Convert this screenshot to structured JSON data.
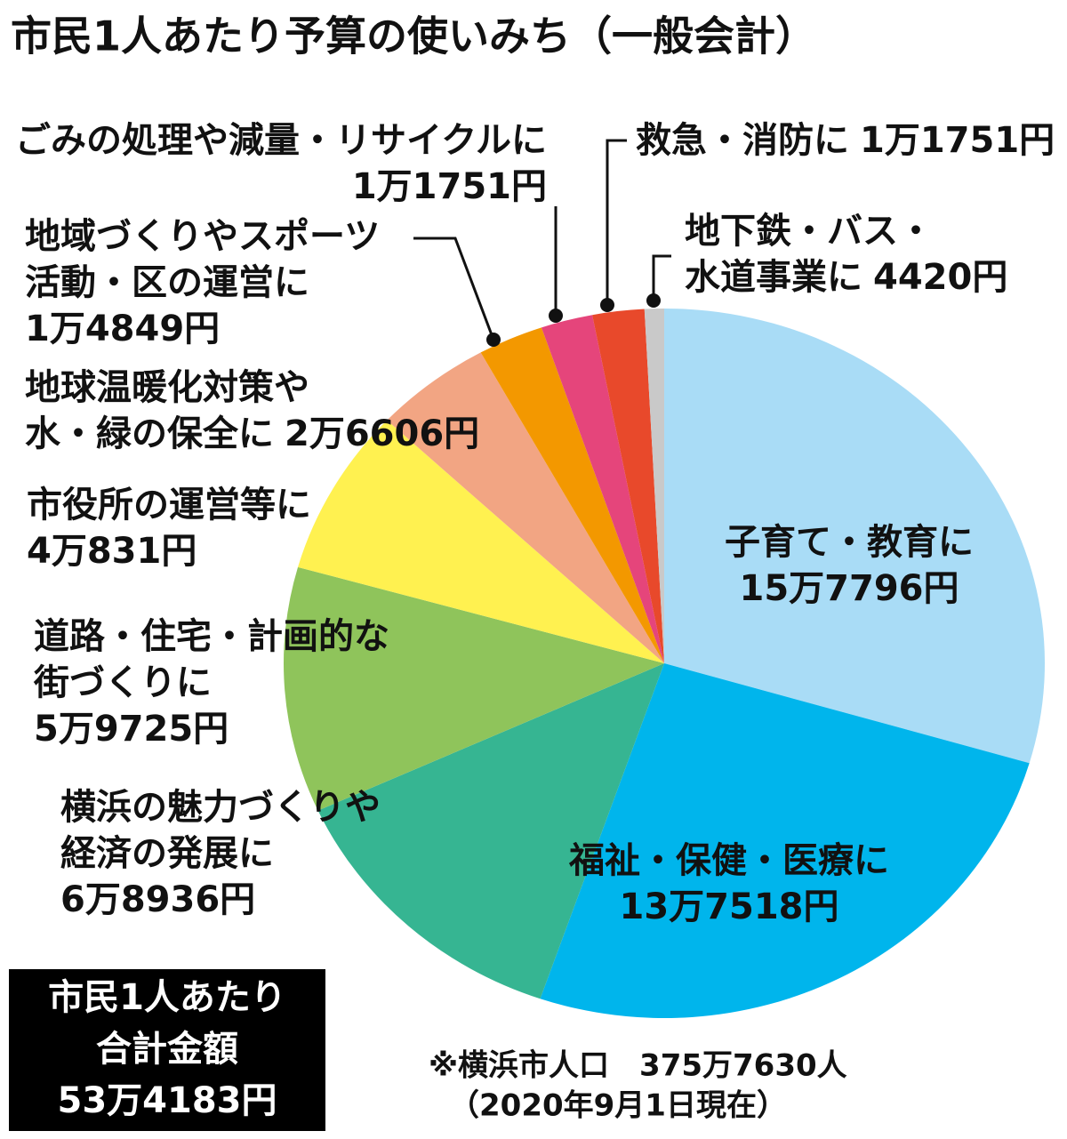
{
  "chart_data": {
    "type": "pie",
    "title": "市民1人あたり予算の使いみち（一般会計）",
    "categories": [
      [
        "子育て・教育に"
      ],
      [
        "福祉・保健・医療に"
      ],
      [
        "横浜の魅力づくりや",
        "経済の発展に"
      ],
      [
        "道路・住宅・計画的な",
        "街づくりに"
      ],
      [
        "市役所の運営等に"
      ],
      [
        "地球温暖化対策や",
        "水・緑の保全に"
      ],
      [
        "地域づくりやスポーツ",
        "活動・区の運営に"
      ],
      [
        "ごみの処理や減量・リサイクルに"
      ],
      [
        "救急・消防に"
      ],
      [
        "地下鉄・バス・",
        "水道事業に"
      ]
    ],
    "values": [
      157796,
      137518,
      68936,
      59725,
      40831,
      26606,
      14849,
      11751,
      11751,
      4420
    ],
    "value_labels": [
      "15万7796円",
      "13万7518円",
      "6万8936円",
      "5万9725円",
      "4万831円",
      "2万6606円",
      "1万4849円",
      "1万1751円",
      "1万1751円",
      "4420円"
    ],
    "colors": [
      "#a9dcf6",
      "#00b5ec",
      "#36b592",
      "#8fc45b",
      "#fff150",
      "#f2a583",
      "#f39800",
      "#e5457b",
      "#e8492b",
      "#c9c9c9"
    ],
    "total": {
      "lines": [
        "市民1人あたり",
        "合計金額"
      ],
      "value_label": "53万4183円"
    },
    "notes": [
      "※横浜市人口　375万7630人",
      "（2020年9月1日現在）"
    ]
  }
}
